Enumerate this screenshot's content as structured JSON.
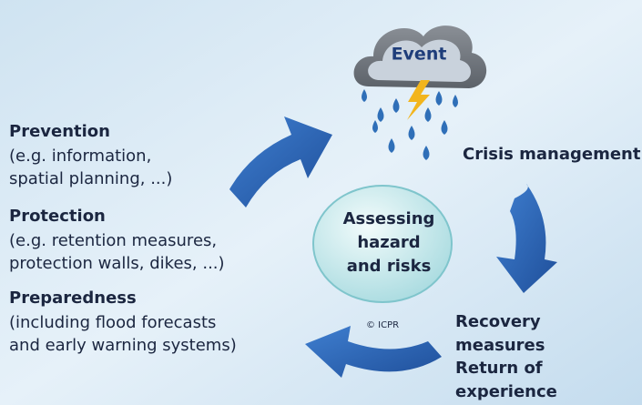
{
  "cloud": {
    "label": "Event"
  },
  "center": {
    "lines": [
      "Assessing",
      "hazard",
      "and risks"
    ]
  },
  "copyright": "© ICPR",
  "crisis": {
    "title": "Crisis management"
  },
  "recovery": {
    "lines": [
      "Recovery",
      "measures",
      "Return of",
      "experience"
    ]
  },
  "left": [
    {
      "title": "Prevention",
      "lines": [
        "(e.g. information,",
        "spatial planning, ...)"
      ]
    },
    {
      "title": "Protection",
      "lines": [
        "(e.g. retention measures,",
        "protection walls, dikes, ...)"
      ]
    },
    {
      "title": "Preparedness",
      "lines": [
        "(including flood forecasts",
        "and early warning systems)"
      ]
    }
  ]
}
